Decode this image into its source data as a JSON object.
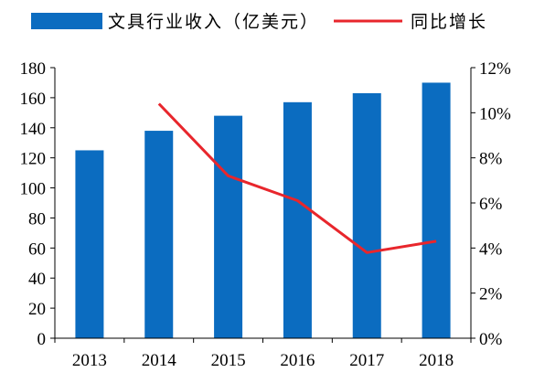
{
  "chart_data": {
    "type": "bar+line",
    "categories": [
      "2013",
      "2014",
      "2015",
      "2016",
      "2017",
      "2018"
    ],
    "series": [
      {
        "name": "文具行业收入（亿美元）",
        "type": "bar",
        "axis": "left",
        "color": "#0b6cc0",
        "values": [
          125,
          138,
          148,
          157,
          163,
          170
        ]
      },
      {
        "name": "同比增长",
        "type": "line",
        "axis": "right",
        "color": "#e8262c",
        "values": [
          null,
          10.4,
          7.2,
          6.1,
          3.8,
          4.3
        ]
      }
    ],
    "y_left": {
      "min": 0,
      "max": 180,
      "ticks": [
        "0",
        "20",
        "40",
        "60",
        "80",
        "100",
        "120",
        "140",
        "160",
        "180"
      ]
    },
    "y_right": {
      "min": 0,
      "max": 12,
      "ticks": [
        "0%",
        "2%",
        "4%",
        "6%",
        "8%",
        "10%",
        "12%"
      ]
    },
    "legend_position": "top",
    "grid": false
  }
}
